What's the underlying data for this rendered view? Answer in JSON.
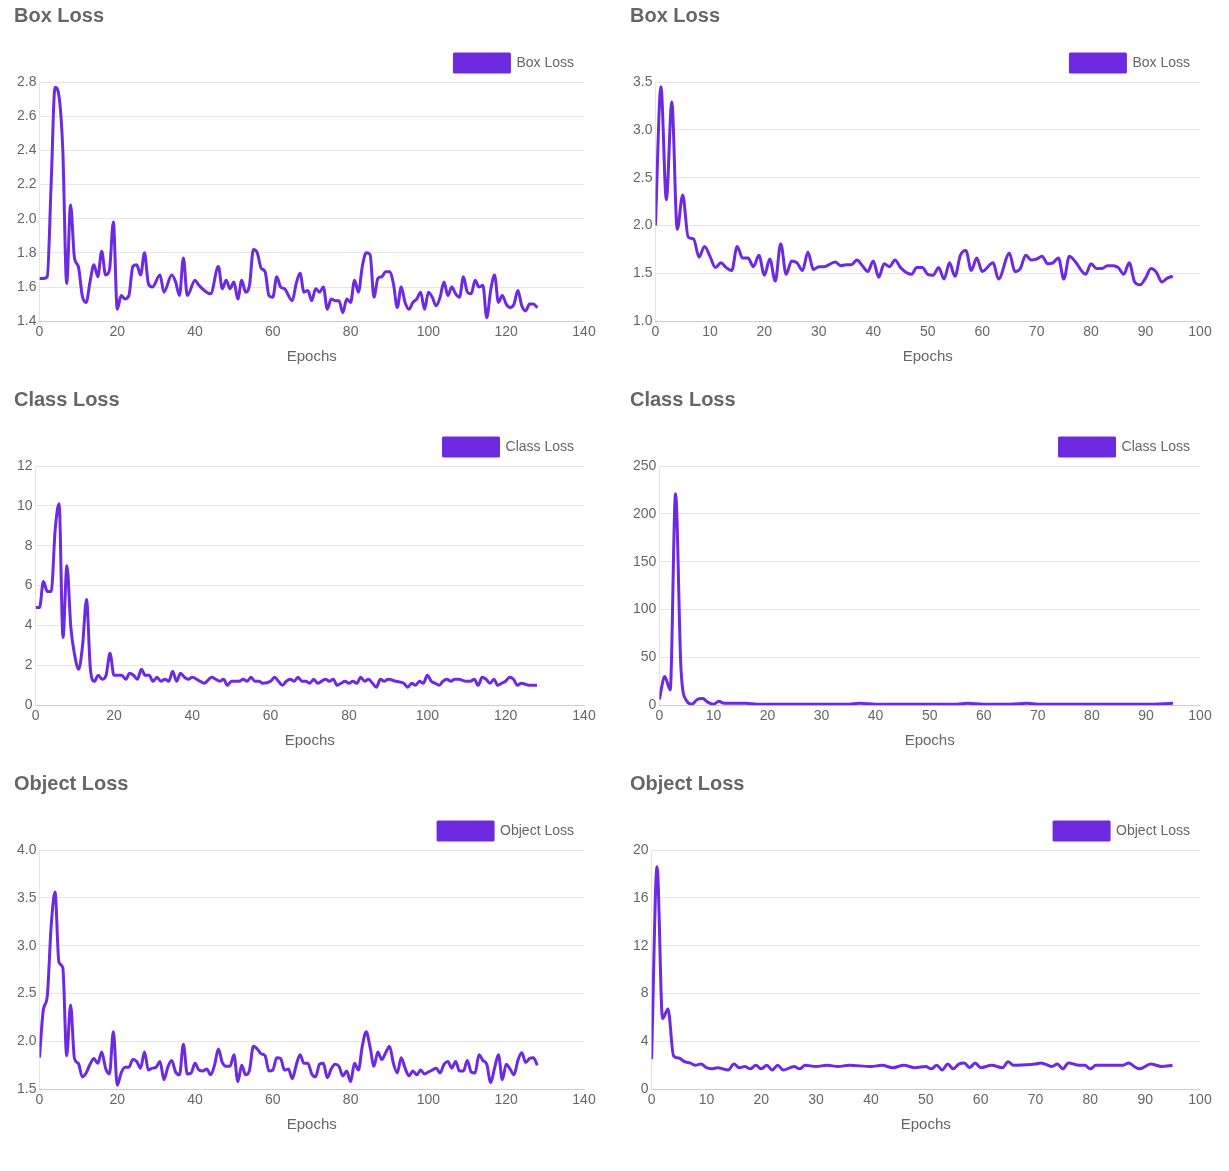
{
  "chart_data": [
    {
      "type": "line",
      "title": "Box Loss",
      "xlabel": "Epochs",
      "xlim": [
        0,
        140
      ],
      "xticks": [
        0,
        20,
        40,
        60,
        80,
        100,
        120,
        140
      ],
      "ylim": [
        1.4,
        2.8
      ],
      "yticks": [
        1.4,
        1.6,
        1.8,
        {
          "value": 2,
          "label": "2.0"
        },
        2.2,
        2.4,
        2.6,
        2.8
      ],
      "grid": "y",
      "legend": "top right",
      "series": [
        {
          "name": "Box Loss",
          "color": "#6d2ae0",
          "x": [
            0,
            1,
            2,
            3,
            4,
            5,
            6,
            7,
            8,
            9,
            10,
            11,
            12,
            13,
            14,
            15,
            16,
            17,
            18,
            19,
            20,
            21,
            22,
            23,
            24,
            25,
            26,
            27,
            28,
            29,
            31,
            32,
            34,
            35,
            36,
            37,
            38,
            40,
            41,
            44,
            46,
            47,
            48,
            49,
            50,
            51,
            52,
            53,
            54,
            55,
            56,
            57,
            58,
            59,
            60,
            61,
            62,
            63,
            65,
            66,
            67,
            68,
            69,
            70,
            71,
            72,
            73,
            74,
            75,
            76,
            77,
            78,
            79,
            80,
            81,
            82,
            83,
            84,
            85,
            86,
            87,
            88,
            89,
            90,
            91,
            92,
            93,
            94,
            95,
            96,
            97,
            98,
            99,
            100,
            101,
            102,
            103,
            104,
            105,
            106,
            107,
            108,
            109,
            110,
            111,
            112,
            113,
            114,
            115,
            116,
            117,
            118,
            119,
            120,
            121,
            122,
            123,
            124,
            125,
            126,
            127,
            128
          ],
          "values": [
            1.65,
            1.65,
            1.66,
            2.2,
            2.77,
            2.72,
            2.4,
            1.62,
            2.08,
            1.77,
            1.72,
            1.55,
            1.51,
            1.63,
            1.73,
            1.66,
            1.81,
            1.67,
            1.7,
            1.98,
            1.47,
            1.55,
            1.53,
            1.55,
            1.72,
            1.73,
            1.67,
            1.8,
            1.62,
            1.6,
            1.67,
            1.57,
            1.67,
            1.63,
            1.55,
            1.77,
            1.55,
            1.64,
            1.61,
            1.56,
            1.72,
            1.59,
            1.64,
            1.59,
            1.63,
            1.53,
            1.64,
            1.57,
            1.61,
            1.82,
            1.8,
            1.71,
            1.69,
            1.55,
            1.54,
            1.66,
            1.6,
            1.59,
            1.52,
            1.62,
            1.68,
            1.57,
            1.58,
            1.52,
            1.59,
            1.57,
            1.6,
            1.47,
            1.53,
            1.52,
            1.52,
            1.45,
            1.53,
            1.51,
            1.64,
            1.57,
            1.72,
            1.8,
            1.79,
            1.54,
            1.65,
            1.66,
            1.69,
            1.69,
            1.62,
            1.48,
            1.6,
            1.51,
            1.47,
            1.51,
            1.53,
            1.57,
            1.47,
            1.57,
            1.54,
            1.49,
            1.54,
            1.63,
            1.55,
            1.6,
            1.56,
            1.54,
            1.66,
            1.57,
            1.56,
            1.64,
            1.6,
            1.61,
            1.42,
            1.58,
            1.67,
            1.51,
            1.55,
            1.5,
            1.48,
            1.5,
            1.58,
            1.49,
            1.46,
            1.5,
            1.5,
            1.48
          ]
        }
      ]
    },
    {
      "type": "line",
      "title": "Box Loss",
      "xlabel": "Epochs",
      "xlim": [
        0,
        100
      ],
      "xticks": [
        0,
        10,
        20,
        30,
        40,
        50,
        60,
        70,
        80,
        90,
        100
      ],
      "ylim": [
        1.0,
        3.5
      ],
      "yticks": [
        {
          "value": 1,
          "label": "1.0"
        },
        1.5,
        {
          "value": 2,
          "label": "2.0"
        },
        2.5,
        {
          "value": 3,
          "label": "3.0"
        },
        3.5
      ],
      "grid": "y",
      "legend": "top right",
      "series": [
        {
          "name": "Box Loss",
          "color": "#6d2ae0",
          "x": [
            0,
            1,
            2,
            3,
            4,
            5,
            6,
            7,
            8,
            9,
            10,
            11,
            12,
            13,
            14,
            15,
            16,
            17,
            18,
            19,
            20,
            21,
            22,
            23,
            24,
            25,
            26,
            27,
            28,
            29,
            30,
            31,
            33,
            34,
            35,
            36,
            37,
            38,
            39,
            40,
            41,
            42,
            43,
            44,
            45,
            47,
            48,
            49,
            50,
            51,
            52,
            53,
            54,
            55,
            56,
            57,
            58,
            59,
            60,
            62,
            63,
            65,
            66,
            67,
            68,
            69,
            70,
            71,
            72,
            73,
            74,
            75,
            76,
            77,
            79,
            80,
            81,
            82,
            83,
            84,
            85,
            86,
            87,
            88,
            89,
            90,
            91,
            92,
            93,
            94,
            95
          ],
          "values": [
            2.0,
            3.45,
            2.27,
            3.29,
            1.96,
            2.32,
            1.88,
            1.86,
            1.67,
            1.78,
            1.68,
            1.56,
            1.61,
            1.56,
            1.53,
            1.78,
            1.66,
            1.66,
            1.57,
            1.69,
            1.48,
            1.65,
            1.42,
            1.81,
            1.49,
            1.63,
            1.61,
            1.53,
            1.72,
            1.54,
            1.57,
            1.57,
            1.62,
            1.58,
            1.59,
            1.59,
            1.64,
            1.58,
            1.52,
            1.63,
            1.46,
            1.6,
            1.57,
            1.64,
            1.56,
            1.49,
            1.56,
            1.56,
            1.49,
            1.48,
            1.56,
            1.44,
            1.61,
            1.47,
            1.69,
            1.74,
            1.53,
            1.66,
            1.52,
            1.61,
            1.44,
            1.71,
            1.52,
            1.55,
            1.69,
            1.64,
            1.65,
            1.68,
            1.6,
            1.61,
            1.66,
            1.44,
            1.68,
            1.63,
            1.49,
            1.6,
            1.55,
            1.55,
            1.58,
            1.58,
            1.56,
            1.49,
            1.61,
            1.41,
            1.38,
            1.45,
            1.55,
            1.51,
            1.41,
            1.45,
            1.47
          ]
        }
      ]
    },
    {
      "type": "line",
      "title": "Class Loss",
      "xlabel": "Epochs",
      "xlim": [
        0,
        140
      ],
      "xticks": [
        0,
        20,
        40,
        60,
        80,
        100,
        120,
        140
      ],
      "ylim": [
        0,
        12
      ],
      "yticks": [
        0,
        2,
        4,
        6,
        8,
        10,
        12
      ],
      "grid": "y",
      "legend": "top right",
      "series": [
        {
          "name": "Class Loss",
          "color": "#6d2ae0",
          "x": [
            0,
            1,
            2,
            3,
            4,
            5,
            6,
            7,
            8,
            9,
            10,
            11,
            12,
            13,
            14,
            15,
            16,
            17,
            18,
            19,
            20,
            21,
            22,
            23,
            24,
            25,
            26,
            27,
            28,
            29,
            30,
            31,
            32,
            33,
            34,
            35,
            36,
            37,
            38,
            39,
            40,
            42,
            43,
            45,
            46,
            47,
            48,
            49,
            50,
            52,
            53,
            54,
            55,
            56,
            57,
            58,
            60,
            61,
            62,
            63,
            64,
            65,
            66,
            67,
            68,
            69,
            70,
            71,
            72,
            74,
            75,
            76,
            77,
            78,
            79,
            80,
            81,
            82,
            83,
            84,
            85,
            86,
            87,
            88,
            89,
            90,
            92,
            94,
            95,
            96,
            97,
            98,
            99,
            100,
            101,
            102,
            103,
            104,
            105,
            106,
            107,
            108,
            110,
            111,
            112,
            113,
            114,
            115,
            116,
            117,
            118,
            119,
            120,
            121,
            122,
            123,
            124,
            126,
            128
          ],
          "values": [
            4.9,
            4.9,
            6.2,
            5.7,
            5.7,
            8.8,
            10.1,
            3.4,
            7.0,
            3.9,
            2.5,
            1.8,
            3.0,
            5.3,
            1.8,
            1.2,
            1.5,
            1.3,
            1.5,
            2.6,
            1.5,
            1.5,
            1.5,
            1.3,
            1.6,
            1.5,
            1.3,
            1.8,
            1.5,
            1.5,
            1.2,
            1.4,
            1.2,
            1.3,
            1.2,
            1.7,
            1.2,
            1.6,
            1.4,
            1.3,
            1.4,
            1.2,
            1.1,
            1.4,
            1.3,
            1.2,
            1.3,
            1.0,
            1.2,
            1.2,
            1.3,
            1.2,
            1.4,
            1.2,
            1.2,
            1.1,
            1.2,
            1.4,
            1.2,
            1.0,
            1.2,
            1.3,
            1.2,
            1.4,
            1.2,
            1.2,
            1.1,
            1.3,
            1.1,
            1.3,
            1.2,
            1.3,
            1.0,
            1.1,
            1.2,
            1.1,
            1.2,
            1.1,
            1.4,
            1.2,
            1.3,
            1.1,
            0.9,
            1.3,
            1.2,
            1.3,
            1.2,
            1.1,
            0.9,
            1.1,
            1.0,
            1.2,
            1.1,
            1.5,
            1.2,
            1.1,
            1.0,
            1.2,
            1.3,
            1.2,
            1.3,
            1.3,
            1.2,
            1.2,
            1.3,
            1.0,
            1.4,
            1.3,
            1.1,
            1.3,
            1.0,
            1.1,
            1.2,
            1.4,
            1.3,
            1.0,
            1.1,
            1.0,
            1.0
          ]
        }
      ]
    },
    {
      "type": "line",
      "title": "Class Loss",
      "xlabel": "Epochs",
      "xlim": [
        0,
        100
      ],
      "xticks": [
        0,
        10,
        20,
        30,
        40,
        50,
        60,
        70,
        80,
        90,
        100
      ],
      "ylim": [
        0,
        250
      ],
      "yticks": [
        0,
        50,
        100,
        150,
        200,
        250
      ],
      "grid": "y",
      "legend": "top right",
      "series": [
        {
          "name": "Class Loss",
          "color": "#6d2ae0",
          "x": [
            0,
            1,
            2,
            3,
            4,
            5,
            6,
            7,
            8,
            9,
            10,
            11,
            12,
            14,
            16,
            18,
            20,
            25,
            30,
            35,
            37,
            40,
            45,
            50,
            55,
            57,
            60,
            65,
            68,
            70,
            75,
            80,
            85,
            90,
            95
          ],
          "values": [
            6,
            30,
            16,
            221,
            38,
            5,
            1,
            6,
            7,
            3,
            1,
            4,
            2,
            2,
            2,
            1,
            1,
            1,
            1,
            1,
            2,
            1,
            1,
            1,
            1,
            2,
            1,
            1,
            2,
            1,
            1,
            1,
            1,
            1,
            2
          ]
        }
      ]
    },
    {
      "type": "line",
      "title": "Object Loss",
      "xlabel": "Epochs",
      "xlim": [
        0,
        140
      ],
      "xticks": [
        0,
        20,
        40,
        60,
        80,
        100,
        120,
        140
      ],
      "ylim": [
        1.5,
        4.0
      ],
      "yticks": [
        1.5,
        {
          "value": 2,
          "label": "2.0"
        },
        2.5,
        {
          "value": 3,
          "label": "3.0"
        },
        3.5,
        {
          "value": 4,
          "label": "4.0"
        }
      ],
      "grid": "y",
      "legend": "top right",
      "series": [
        {
          "name": "Object Loss",
          "color": "#6d2ae0",
          "x": [
            0,
            1,
            2,
            3,
            4,
            5,
            6,
            7,
            8,
            9,
            10,
            11,
            12,
            13,
            14,
            15,
            16,
            17,
            18,
            19,
            20,
            21,
            22,
            23,
            24,
            25,
            26,
            27,
            28,
            29,
            30,
            31,
            32,
            33,
            34,
            35,
            36,
            37,
            38,
            39,
            40,
            41,
            42,
            43,
            44,
            45,
            46,
            47,
            48,
            49,
            50,
            51,
            52,
            53,
            54,
            55,
            56,
            57,
            58,
            59,
            60,
            61,
            62,
            63,
            64,
            65,
            66,
            67,
            68,
            69,
            70,
            71,
            72,
            73,
            74,
            75,
            76,
            77,
            78,
            79,
            80,
            81,
            82,
            83,
            84,
            85,
            86,
            87,
            88,
            89,
            90,
            91,
            92,
            93,
            94,
            95,
            96,
            97,
            98,
            99,
            100,
            101,
            102,
            103,
            104,
            105,
            106,
            107,
            108,
            109,
            110,
            111,
            112,
            113,
            114,
            115,
            116,
            117,
            118,
            119,
            120,
            121,
            122,
            123,
            124,
            125,
            126,
            127,
            128
          ],
          "values": [
            1.83,
            2.33,
            2.47,
            3.2,
            3.56,
            2.83,
            2.77,
            1.85,
            2.38,
            1.82,
            1.77,
            1.63,
            1.67,
            1.76,
            1.82,
            1.77,
            1.89,
            1.72,
            1.66,
            2.1,
            1.54,
            1.67,
            1.73,
            1.73,
            1.81,
            1.79,
            1.72,
            1.89,
            1.7,
            1.72,
            1.73,
            1.79,
            1.6,
            1.73,
            1.8,
            1.68,
            1.65,
            1.97,
            1.66,
            1.67,
            1.77,
            1.7,
            1.69,
            1.71,
            1.65,
            1.75,
            1.92,
            1.78,
            1.74,
            1.74,
            1.86,
            1.58,
            1.75,
            1.65,
            1.7,
            1.95,
            1.92,
            1.87,
            1.85,
            1.69,
            1.7,
            1.83,
            1.82,
            1.7,
            1.71,
            1.61,
            1.75,
            1.86,
            1.77,
            1.77,
            1.66,
            1.63,
            1.76,
            1.77,
            1.62,
            1.71,
            1.76,
            1.74,
            1.64,
            1.69,
            1.58,
            1.77,
            1.7,
            1.95,
            2.1,
            1.94,
            1.74,
            1.89,
            1.81,
            1.88,
            1.95,
            1.77,
            1.67,
            1.83,
            1.72,
            1.64,
            1.69,
            1.65,
            1.7,
            1.66,
            1.68,
            1.7,
            1.72,
            1.67,
            1.76,
            1.79,
            1.72,
            1.79,
            1.69,
            1.69,
            1.8,
            1.68,
            1.67,
            1.86,
            1.8,
            1.76,
            1.57,
            1.72,
            1.86,
            1.6,
            1.76,
            1.71,
            1.65,
            1.8,
            1.88,
            1.78,
            1.82,
            1.83,
            1.75
          ]
        }
      ]
    },
    {
      "type": "line",
      "title": "Object Loss",
      "xlabel": "Epochs",
      "xlim": [
        0,
        100
      ],
      "xticks": [
        0,
        10,
        20,
        30,
        40,
        50,
        60,
        70,
        80,
        90,
        100
      ],
      "ylim": [
        0,
        20
      ],
      "yticks": [
        0,
        4,
        8,
        12,
        16,
        20
      ],
      "grid": "y",
      "legend": "top right",
      "series": [
        {
          "name": "Object Loss",
          "color": "#6d2ae0",
          "x": [
            0,
            1,
            2,
            3,
            4,
            5,
            6,
            7,
            8,
            9,
            10,
            11,
            12,
            14,
            15,
            16,
            17,
            18,
            19,
            20,
            21,
            22,
            23,
            24,
            26,
            27,
            28,
            30,
            32,
            34,
            36,
            40,
            42,
            44,
            46,
            48,
            50,
            51,
            52,
            53,
            54,
            55,
            56,
            57,
            58,
            59,
            60,
            62,
            64,
            65,
            66,
            70,
            71,
            73,
            74,
            75,
            76,
            78,
            79,
            80,
            81,
            84,
            86,
            87,
            88,
            89,
            91,
            93,
            95
          ],
          "values": [
            2.5,
            18.6,
            5.9,
            6.7,
            2.8,
            2.6,
            2.3,
            2.2,
            2.0,
            2.1,
            1.8,
            1.7,
            1.8,
            1.6,
            2.1,
            1.8,
            1.9,
            1.7,
            2.0,
            1.7,
            2.0,
            1.6,
            2.0,
            1.6,
            1.9,
            1.7,
            2.0,
            1.9,
            2.0,
            1.9,
            2.0,
            1.9,
            2.0,
            1.8,
            2.0,
            1.8,
            1.9,
            1.7,
            2.0,
            1.6,
            2.1,
            1.7,
            2.1,
            2.2,
            1.8,
            2.2,
            1.8,
            2.0,
            1.8,
            2.3,
            2.0,
            2.1,
            2.2,
            1.9,
            2.1,
            1.7,
            2.2,
            2.0,
            2.0,
            1.7,
            2.0,
            2.0,
            2.0,
            2.2,
            1.9,
            1.7,
            2.1,
            1.9,
            2.0
          ]
        }
      ]
    }
  ]
}
